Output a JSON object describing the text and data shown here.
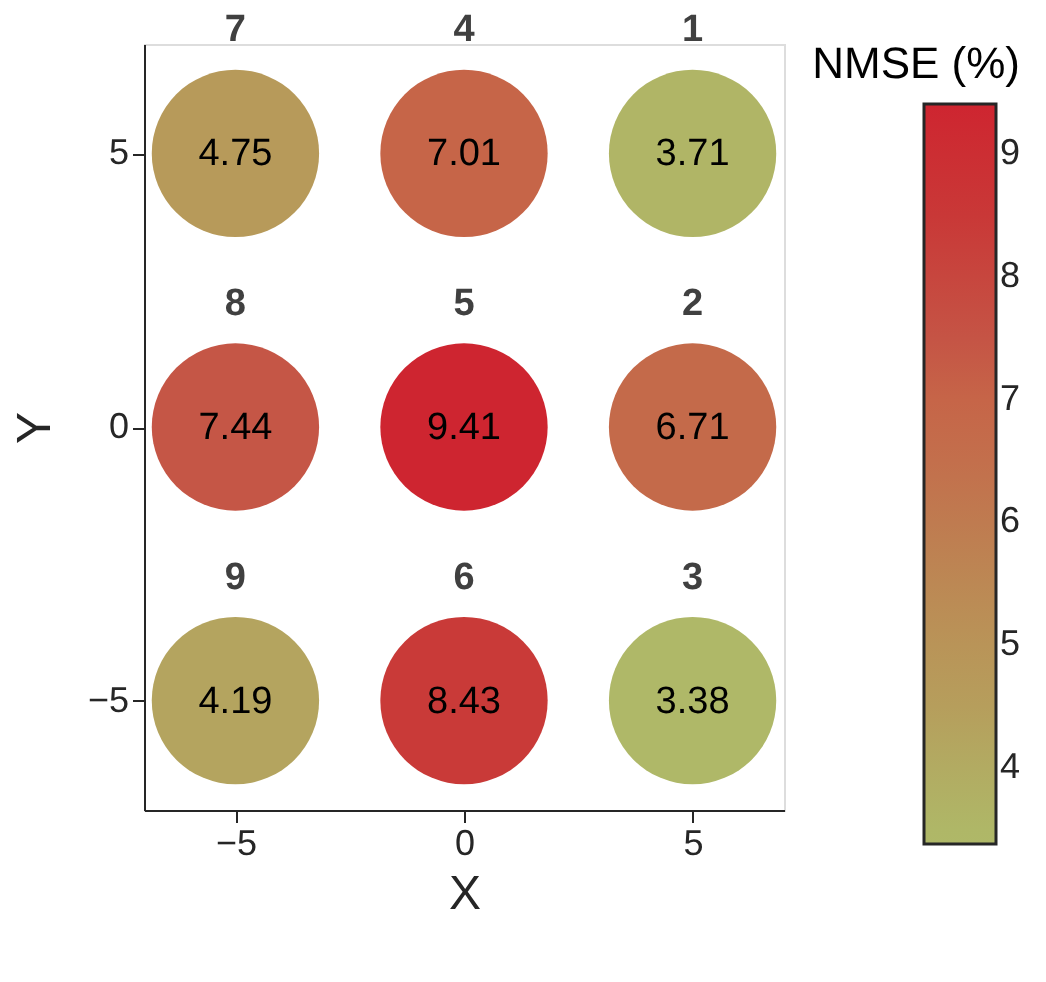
{
  "chart_data": {
    "type": "scatter",
    "xlabel": "X",
    "ylabel": "Y",
    "clabel": "NMSE (%)",
    "x": [
      -5,
      0,
      5,
      -5,
      0,
      5,
      -5,
      0,
      5
    ],
    "values": [
      5,
      5,
      5,
      0,
      0,
      0,
      -5,
      -5,
      -5
    ],
    "cvalues": [
      4.75,
      7.01,
      3.71,
      7.44,
      9.41,
      6.71,
      4.19,
      8.43,
      3.38
    ],
    "colors": [
      "#b79a5a",
      "#c66548",
      "#b0b566",
      "#c55646",
      "#ce2530",
      "#c46a4a",
      "#b4a45f",
      "#c93a38",
      "#afb868"
    ],
    "annotations": [
      {
        "text": "4.75",
        "x": -5,
        "y": 5
      },
      {
        "text": "7.01",
        "x": 0,
        "y": 5
      },
      {
        "text": "3.71",
        "x": 5,
        "y": 5
      },
      {
        "text": "7.44",
        "x": -5,
        "y": 0
      },
      {
        "text": "9.41",
        "x": 0,
        "y": 0
      },
      {
        "text": "6.71",
        "x": 5,
        "y": 0
      },
      {
        "text": "4.19",
        "x": -5,
        "y": -5
      },
      {
        "text": "8.43",
        "x": 0,
        "y": -5
      },
      {
        "text": "3.38",
        "x": 5,
        "y": -5
      },
      {
        "text": "7",
        "x": -5,
        "y": 5
      },
      {
        "text": "4",
        "x": 0,
        "y": 5
      },
      {
        "text": "1",
        "x": 5,
        "y": 5
      },
      {
        "text": "8",
        "x": -5,
        "y": 0
      },
      {
        "text": "5",
        "x": 0,
        "y": 0
      },
      {
        "text": "2",
        "x": 5,
        "y": 0
      },
      {
        "text": "9",
        "x": -5,
        "y": -5
      },
      {
        "text": "6",
        "x": 0,
        "y": -5
      },
      {
        "text": "3",
        "x": 5,
        "y": -5
      }
    ],
    "xlim": [
      -7,
      7
    ],
    "ylim": [
      -7,
      7
    ],
    "xticks": [
      -5,
      0,
      5
    ],
    "yticks": [
      -5,
      0,
      5
    ],
    "clim": [
      3.38,
      9.41
    ],
    "cticks": [
      4,
      5,
      6,
      7,
      8,
      9
    ],
    "marker": "circle",
    "grid": false
  }
}
